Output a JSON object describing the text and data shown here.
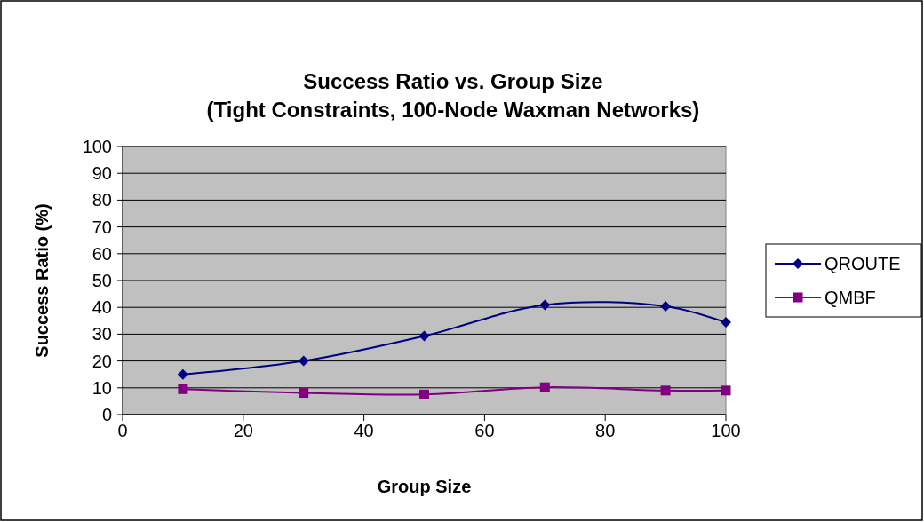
{
  "chart_data": {
    "type": "line",
    "title": "Success Ratio vs. Group Size",
    "subtitle": "(Tight Constraints, 100-Node Waxman Networks)",
    "xlabel": "Group Size",
    "ylabel": "Success Ratio (%)",
    "x": [
      10,
      30,
      50,
      70,
      90,
      100
    ],
    "series": [
      {
        "name": "QROUTE",
        "color": "#000080",
        "marker": "diamond",
        "values": [
          15,
          20,
          29.3,
          40.9,
          40.4,
          34.4
        ]
      },
      {
        "name": "QMBF",
        "color": "#800080",
        "marker": "square",
        "values": [
          9.5,
          8.1,
          7.5,
          10.2,
          9,
          9
        ]
      }
    ],
    "xlim": [
      0,
      100
    ],
    "xticks": [
      0,
      20,
      40,
      60,
      80,
      100
    ],
    "ylim": [
      0,
      100
    ],
    "yticks": [
      0,
      10,
      20,
      30,
      40,
      50,
      60,
      70,
      80,
      90,
      100
    ],
    "grid": "y",
    "legend": "right",
    "line_style": "solid"
  }
}
